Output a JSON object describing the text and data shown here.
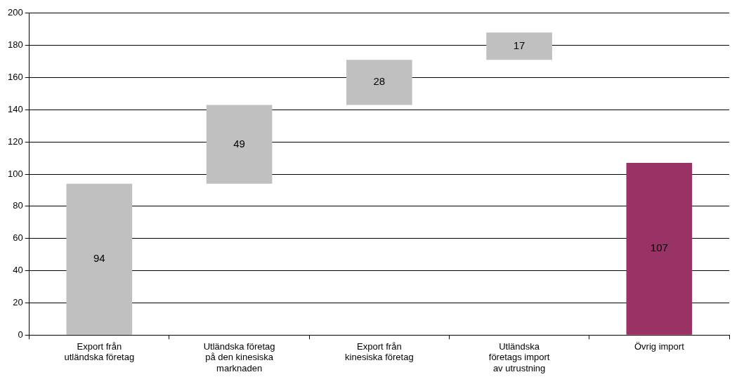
{
  "chart_data": {
    "type": "bar",
    "categories": [
      "Export från utländska företag",
      "Utländska företag på den kinesiska marknaden",
      "Export från kinesiska företag",
      "Utländska företags import av utrustning",
      "Övrig import"
    ],
    "values": [
      94,
      49,
      28,
      17,
      107
    ],
    "base": [
      0,
      94,
      143,
      171,
      0
    ],
    "colors": [
      "#c0c0c0",
      "#c0c0c0",
      "#c0c0c0",
      "#c0c0c0",
      "#993366"
    ],
    "ylim": [
      0,
      200
    ],
    "yticks": [
      0,
      20,
      40,
      60,
      80,
      100,
      120,
      140,
      160,
      180,
      200
    ],
    "grid": "y",
    "data_labels": true,
    "legend": false
  }
}
